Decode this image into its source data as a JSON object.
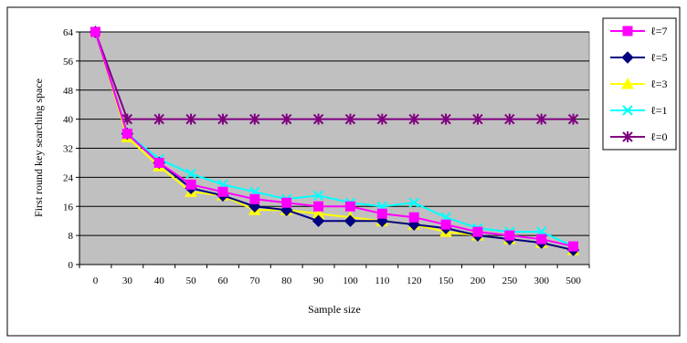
{
  "chart_data": {
    "type": "line",
    "title": "",
    "xlabel": "Sample size",
    "ylabel": "First round key searching space",
    "categories": [
      "0",
      "30",
      "40",
      "50",
      "60",
      "70",
      "80",
      "90",
      "100",
      "110",
      "120",
      "150",
      "200",
      "250",
      "300",
      "500"
    ],
    "ylim": [
      0,
      64
    ],
    "yticks": [
      "0",
      "8",
      "16",
      "24",
      "32",
      "40",
      "48",
      "56",
      "64"
    ],
    "grid": "horizontal",
    "legend_position": "right",
    "series": [
      {
        "name": "ℓ=7",
        "color": "#FF00FF",
        "marker": "square",
        "values": [
          64,
          36,
          28,
          22,
          20,
          18,
          17,
          16,
          16,
          14,
          13,
          11,
          9,
          8,
          7,
          5
        ]
      },
      {
        "name": "ℓ=5",
        "color": "#000080",
        "marker": "diamond",
        "values": [
          64,
          36,
          28,
          21,
          19,
          16,
          15,
          12,
          12,
          12,
          11,
          10,
          8,
          7,
          6,
          4
        ]
      },
      {
        "name": "ℓ=3",
        "color": "#FFFF00",
        "marker": "triangle",
        "values": [
          64,
          35,
          27,
          20,
          19,
          15,
          15,
          14,
          13,
          12,
          11,
          9,
          8,
          7,
          6,
          4
        ]
      },
      {
        "name": "ℓ=1",
        "color": "#00FFFF",
        "marker": "x",
        "values": [
          64,
          36,
          29,
          25,
          22,
          20,
          18,
          19,
          17,
          16,
          17,
          13,
          10,
          9,
          9,
          5
        ]
      },
      {
        "name": "ℓ=0",
        "color": "#800080",
        "marker": "star",
        "values": [
          64,
          40,
          40,
          40,
          40,
          40,
          40,
          40,
          40,
          40,
          40,
          40,
          40,
          40,
          40,
          40
        ]
      }
    ]
  }
}
